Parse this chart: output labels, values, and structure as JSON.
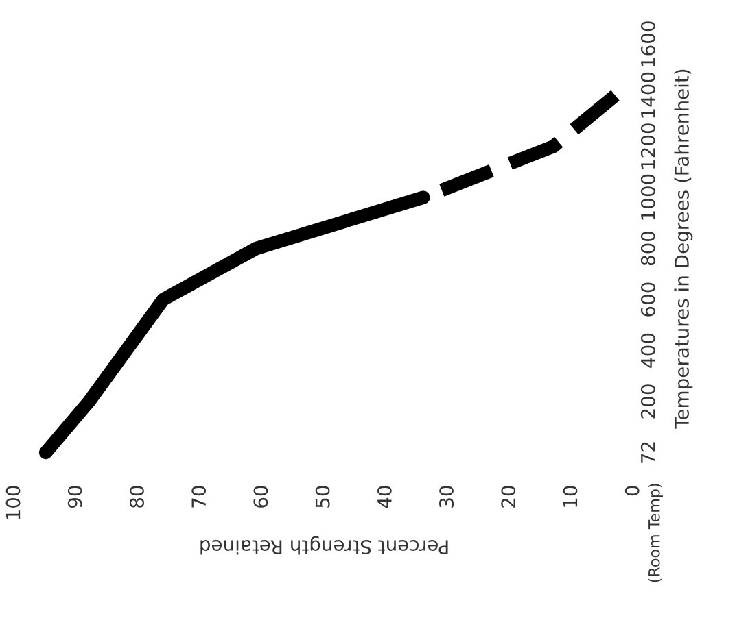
{
  "chart_data": {
    "type": "line",
    "orientation": "horizontal",
    "xlabel": "Percent Strength Retained",
    "ylabel": "Temperatures in Degrees (Fahrenheit)",
    "categories": [
      "1600",
      "1400",
      "1200",
      "1000",
      "800",
      "600",
      "400",
      "200",
      "72"
    ],
    "series": [
      {
        "color": "#000000",
        "line_style": "solid",
        "values": [
          null,
          null,
          null,
          34,
          61,
          76,
          82,
          88,
          95
        ]
      },
      {
        "color": "#000000",
        "line_style": "dashed",
        "values": [
          null,
          3,
          13,
          34,
          null,
          null,
          null,
          null,
          null
        ]
      }
    ],
    "xlim": [
      100,
      0
    ],
    "xticks": [
      0,
      10,
      20,
      30,
      40,
      50,
      60,
      70,
      80,
      90,
      100
    ],
    "grid": false,
    "legend": false,
    "annotations": [
      "(Room Temp)"
    ]
  }
}
